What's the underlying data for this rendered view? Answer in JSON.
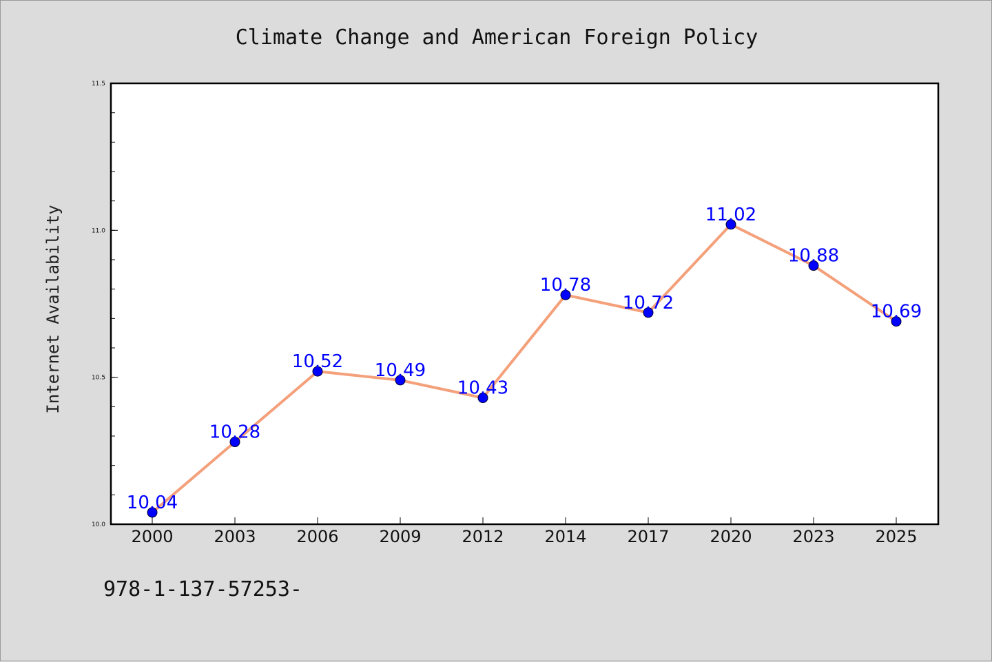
{
  "chart_data": {
    "type": "line",
    "title": "Climate Change and American Foreign Policy",
    "ylabel": "Internet Availability",
    "xlabel": "",
    "categories": [
      "2000",
      "2003",
      "2006",
      "2009",
      "2012",
      "2014",
      "2017",
      "2020",
      "2023",
      "2025"
    ],
    "series": [
      {
        "values": [
          10.04,
          10.28,
          10.52,
          10.49,
          10.43,
          10.78,
          10.72,
          11.02,
          10.88,
          10.69
        ],
        "data_labels": [
          "10.04",
          "10.28",
          "10.52",
          "10.49",
          "10.43",
          "10.78",
          "10.72",
          "11.02",
          "10.88",
          "10.69"
        ]
      }
    ],
    "ylim": [
      10.0,
      11.5
    ],
    "yticks": [
      "10.0",
      "10.5",
      "11.0",
      "11.5"
    ],
    "grid": false,
    "legend": "none",
    "colors": {
      "line": "#f4a07a",
      "marker": "#0000ff",
      "data_label": "#0000ff",
      "plot_background": "#ffffff",
      "figure_background": "#dcdcdc"
    }
  },
  "footer_text": "978-1-137-57253-"
}
